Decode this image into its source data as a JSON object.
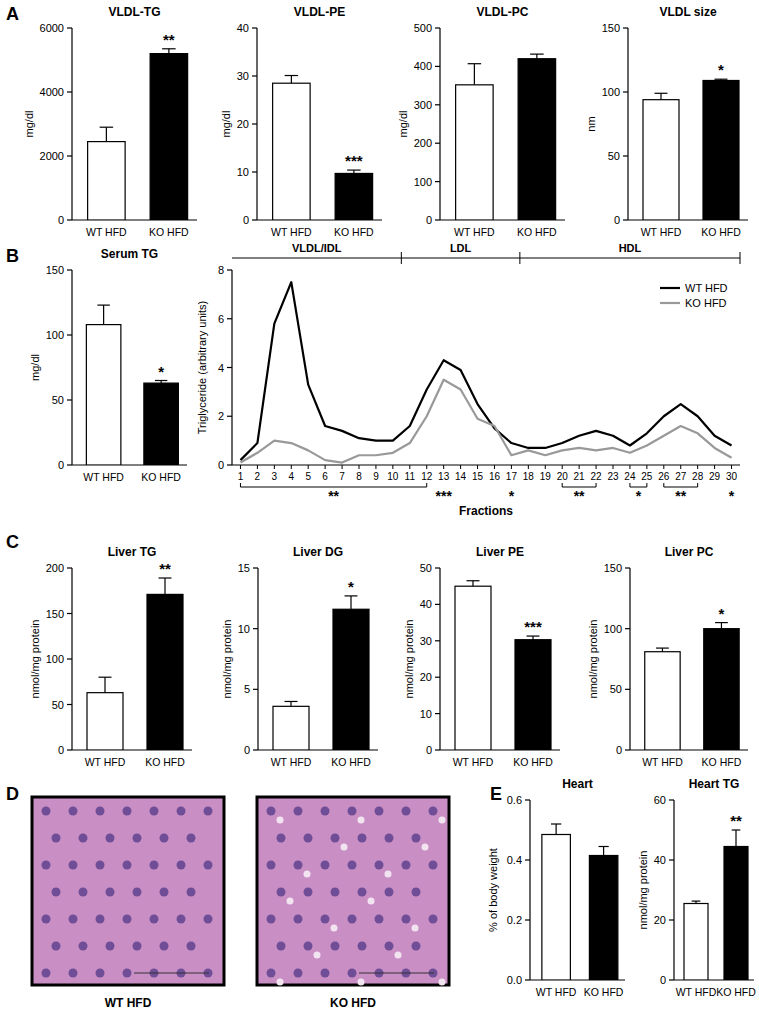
{
  "chart_data": [
    {
      "type": "bar",
      "panel": "A",
      "title": "VLDL-TG",
      "ylabel": "mg/dl",
      "categories": [
        "WT HFD",
        "KO HFD"
      ],
      "values": [
        2450,
        5200
      ],
      "errors": [
        450,
        150
      ],
      "colors": [
        "#ffffff",
        "#000000"
      ],
      "ylim": [
        0,
        6000
      ],
      "yticks": [
        0,
        2000,
        4000,
        6000
      ],
      "annotations": [
        {
          "category": "KO HFD",
          "text": "**"
        }
      ]
    },
    {
      "type": "bar",
      "title": "VLDL-PE",
      "ylabel": "mg/dl",
      "categories": [
        "WT HFD",
        "KO HFD"
      ],
      "values": [
        28.5,
        9.7
      ],
      "errors": [
        1.6,
        0.7
      ],
      "colors": [
        "#ffffff",
        "#000000"
      ],
      "ylim": [
        0,
        40
      ],
      "yticks": [
        0,
        10,
        20,
        30,
        40
      ],
      "annotations": [
        {
          "category": "KO HFD",
          "text": "***"
        }
      ]
    },
    {
      "type": "bar",
      "title": "VLDL-PC",
      "ylabel": "mg/dl",
      "categories": [
        "WT HFD",
        "KO HFD"
      ],
      "values": [
        352,
        420
      ],
      "errors": [
        55,
        12
      ],
      "colors": [
        "#ffffff",
        "#000000"
      ],
      "ylim": [
        0,
        500
      ],
      "yticks": [
        0,
        100,
        200,
        300,
        400,
        500
      ]
    },
    {
      "type": "bar",
      "title": "VLDL size",
      "ylabel": "nm",
      "categories": [
        "WT HFD",
        "KO HFD"
      ],
      "values": [
        94,
        109
      ],
      "errors": [
        5,
        1
      ],
      "colors": [
        "#ffffff",
        "#000000"
      ],
      "ylim": [
        0,
        150
      ],
      "yticks": [
        0,
        50,
        100,
        150
      ],
      "annotations": [
        {
          "category": "KO HFD",
          "text": "*"
        }
      ]
    },
    {
      "type": "bar",
      "panel": "B",
      "title": "Serum TG",
      "ylabel": "mg/dl",
      "categories": [
        "WT HFD",
        "KO HFD"
      ],
      "values": [
        108,
        63
      ],
      "errors": [
        15,
        2
      ],
      "colors": [
        "#ffffff",
        "#000000"
      ],
      "ylim": [
        0,
        150
      ],
      "yticks": [
        0,
        50,
        100,
        150
      ],
      "annotations": [
        {
          "category": "KO HFD",
          "text": "*"
        }
      ]
    },
    {
      "type": "line",
      "ylabel": "Triglyceride (arbitrary units)",
      "xlabel": "Fractions",
      "legend": "upper right",
      "x": [
        1,
        2,
        3,
        4,
        5,
        6,
        7,
        8,
        9,
        10,
        11,
        12,
        13,
        14,
        15,
        16,
        17,
        18,
        19,
        20,
        21,
        22,
        23,
        24,
        25,
        26,
        27,
        28,
        29,
        30
      ],
      "xlim": [
        0.5,
        30.5
      ],
      "xticks": [
        1,
        2,
        3,
        4,
        5,
        6,
        7,
        8,
        9,
        10,
        11,
        12,
        13,
        14,
        15,
        16,
        17,
        18,
        19,
        20,
        21,
        22,
        23,
        24,
        25,
        26,
        27,
        28,
        29,
        30
      ],
      "ylim": [
        0,
        8
      ],
      "yticks": [
        0,
        2,
        4,
        6,
        8
      ],
      "series": [
        {
          "name": "WT HFD",
          "color": "#000000",
          "values": [
            0.2,
            0.9,
            5.8,
            7.5,
            3.3,
            1.6,
            1.4,
            1.1,
            1.0,
            1.0,
            1.6,
            3.1,
            4.3,
            3.9,
            2.5,
            1.5,
            0.9,
            0.7,
            0.7,
            0.9,
            1.2,
            1.4,
            1.2,
            0.8,
            1.3,
            2.0,
            2.5,
            2.0,
            1.2,
            0.8
          ]
        },
        {
          "name": "KO HFD",
          "color": "#999999",
          "values": [
            0.1,
            0.5,
            1.0,
            0.9,
            0.6,
            0.2,
            0.1,
            0.4,
            0.4,
            0.5,
            0.9,
            2.0,
            3.5,
            3.1,
            1.9,
            1.6,
            0.4,
            0.6,
            0.4,
            0.6,
            0.7,
            0.6,
            0.7,
            0.5,
            0.8,
            1.2,
            1.6,
            1.3,
            0.7,
            0.3
          ]
        }
      ],
      "regions": [
        {
          "label": "VLDL/IDL",
          "from": 0.5,
          "to": 10.5
        },
        {
          "label": "LDL",
          "from": 10.5,
          "to": 17.5
        },
        {
          "label": "HDL",
          "from": 17.5,
          "to": 30.5
        }
      ],
      "annotations": [
        {
          "from": 1,
          "to": 12,
          "text": "**"
        },
        {
          "from": 13,
          "to": 13,
          "text": "***"
        },
        {
          "from": 17,
          "to": 17,
          "text": "*"
        },
        {
          "from": 20,
          "to": 22,
          "text": "**"
        },
        {
          "from": 24,
          "to": 25,
          "text": "*"
        },
        {
          "from": 26,
          "to": 28,
          "text": "**"
        },
        {
          "from": 30,
          "to": 30,
          "text": "*"
        }
      ]
    },
    {
      "type": "bar",
      "panel": "C",
      "title": "Liver TG",
      "ylabel": "nmol/mg protein",
      "categories": [
        "WT HFD",
        "KO HFD"
      ],
      "values": [
        63,
        171
      ],
      "errors": [
        17,
        18
      ],
      "colors": [
        "#ffffff",
        "#000000"
      ],
      "ylim": [
        0,
        200
      ],
      "yticks": [
        0,
        50,
        100,
        150,
        200
      ],
      "annotations": [
        {
          "category": "KO HFD",
          "text": "**"
        }
      ]
    },
    {
      "type": "bar",
      "title": "Liver DG",
      "ylabel": "nmol/mg protein",
      "categories": [
        "WT HFD",
        "KO HFD"
      ],
      "values": [
        3.6,
        11.6
      ],
      "errors": [
        0.4,
        1.1
      ],
      "colors": [
        "#ffffff",
        "#000000"
      ],
      "ylim": [
        0,
        15
      ],
      "yticks": [
        0,
        5,
        10,
        15
      ],
      "annotations": [
        {
          "category": "KO HFD",
          "text": "*"
        }
      ]
    },
    {
      "type": "bar",
      "title": "Liver PE",
      "ylabel": "nmol/mg protein",
      "categories": [
        "WT HFD",
        "KO HFD"
      ],
      "values": [
        45,
        30.3
      ],
      "errors": [
        1.5,
        1
      ],
      "colors": [
        "#ffffff",
        "#000000"
      ],
      "ylim": [
        0,
        50
      ],
      "yticks": [
        0,
        10,
        20,
        30,
        40,
        50
      ],
      "annotations": [
        {
          "category": "KO HFD",
          "text": "***"
        }
      ]
    },
    {
      "type": "bar",
      "title": "Liver PC",
      "ylabel": "nmol/mg protein",
      "categories": [
        "WT HFD",
        "KO HFD"
      ],
      "values": [
        81,
        100
      ],
      "errors": [
        3,
        5
      ],
      "colors": [
        "#ffffff",
        "#000000"
      ],
      "ylim": [
        0,
        150
      ],
      "yticks": [
        0,
        50,
        100,
        150
      ],
      "annotations": [
        {
          "category": "KO HFD",
          "text": "*"
        }
      ]
    },
    {
      "type": "image",
      "panel": "D",
      "images": [
        {
          "label": "WT  HFD"
        },
        {
          "label": "KO HFD"
        }
      ]
    },
    {
      "type": "bar",
      "panel": "E",
      "title": "Heart",
      "ylabel": "% of body weight",
      "categories": [
        "WT HFD",
        "KO HFD"
      ],
      "values": [
        0.485,
        0.415
      ],
      "errors": [
        0.035,
        0.03
      ],
      "colors": [
        "#ffffff",
        "#000000"
      ],
      "ylim": [
        0,
        0.6
      ],
      "yticks": [
        {
          "value": 0,
          "label": "0.0"
        },
        0.2,
        0.4,
        0.6
      ]
    },
    {
      "type": "bar",
      "title": "Heart TG",
      "ylabel": "nmol/mg protein",
      "categories": [
        "WT HFD",
        "KO HFD"
      ],
      "values": [
        25.5,
        44.5
      ],
      "errors": [
        0.8,
        5.5
      ],
      "colors": [
        "#ffffff",
        "#000000"
      ],
      "ylim": [
        0,
        60
      ],
      "yticks": [
        0,
        20,
        40,
        60
      ],
      "annotations": [
        {
          "category": "KO HFD",
          "text": "**"
        }
      ]
    }
  ]
}
